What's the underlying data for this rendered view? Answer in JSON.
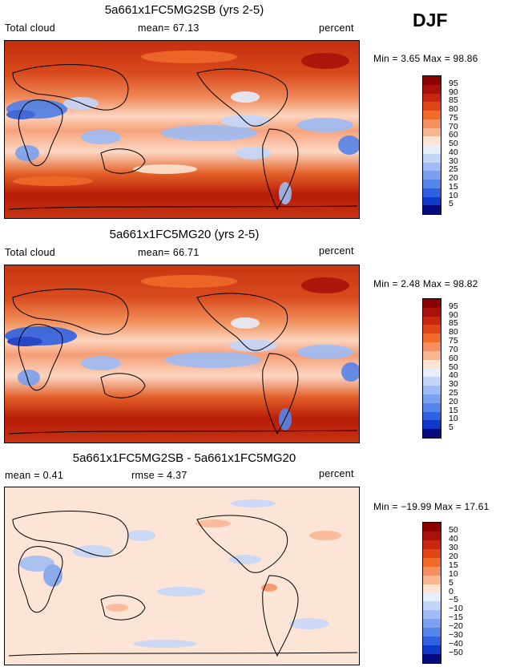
{
  "season": "DJF",
  "panels": [
    {
      "title": "5a661x1FC5MG2SB (yrs 2-5)",
      "left_label": "Total cloud",
      "center_label": "mean=  67.13",
      "right_label": "percent",
      "min_max": "Min =    3.65 Max =  98.86",
      "colorbar": {
        "labels": [
          "95",
          "90",
          "85",
          "80",
          "75",
          "70",
          "60",
          "50",
          "40",
          "30",
          "25",
          "20",
          "15",
          "10",
          "5"
        ],
        "colors": [
          "#8b0000",
          "#a8120a",
          "#c8260e",
          "#e04516",
          "#f06a2a",
          "#f79060",
          "#fab592",
          "#fde3d2",
          "#e6eefc",
          "#c3d6fa",
          "#9ebcf5",
          "#7aa0ef",
          "#5584ea",
          "#2f61e0",
          "#1238c8",
          "#0a0a80"
        ]
      }
    },
    {
      "title": "5a661x1FC5MG20 (yrs 2-5)",
      "left_label": "Total cloud",
      "center_label": "mean=  66.71",
      "right_label": "percent",
      "min_max": "Min =    2.48 Max =  98.82",
      "colorbar": {
        "labels": [
          "95",
          "90",
          "85",
          "80",
          "75",
          "70",
          "60",
          "50",
          "40",
          "30",
          "25",
          "20",
          "15",
          "10",
          "5"
        ],
        "colors": [
          "#8b0000",
          "#a8120a",
          "#c8260e",
          "#e04516",
          "#f06a2a",
          "#f79060",
          "#fab592",
          "#fde3d2",
          "#e6eefc",
          "#c3d6fa",
          "#9ebcf5",
          "#7aa0ef",
          "#5584ea",
          "#2f61e0",
          "#1238c8",
          "#0a0a80"
        ]
      }
    },
    {
      "title": "5a661x1FC5MG2SB - 5a661x1FC5MG20",
      "left_label": "mean =    0.41",
      "center_label": "rmse =    4.37",
      "right_label": "percent",
      "min_max": "Min = −19.99 Max =  17.61",
      "colorbar": {
        "labels": [
          "50",
          "40",
          "30",
          "20",
          "15",
          "10",
          "5",
          "0",
          "−5",
          "−10",
          "−15",
          "−20",
          "−30",
          "−40",
          "−50"
        ],
        "colors": [
          "#8b0000",
          "#a8120a",
          "#c8260e",
          "#e04516",
          "#f06a2a",
          "#f79060",
          "#fab592",
          "#fde3d2",
          "#e6eefc",
          "#c3d6fa",
          "#9ebcf5",
          "#7aa0ef",
          "#5584ea",
          "#2f61e0",
          "#1238c8",
          "#0a0a80"
        ]
      }
    }
  ],
  "chart_data": [
    {
      "type": "heatmap",
      "title": "5a661x1FC5MG2SB (yrs 2-5)",
      "variable": "Total cloud",
      "units": "percent",
      "mean": 67.13,
      "min": 3.65,
      "max": 98.86,
      "color_levels": [
        5,
        10,
        15,
        20,
        25,
        30,
        40,
        50,
        60,
        70,
        75,
        80,
        85,
        90,
        95
      ]
    },
    {
      "type": "heatmap",
      "title": "5a661x1FC5MG20 (yrs 2-5)",
      "variable": "Total cloud",
      "units": "percent",
      "mean": 66.71,
      "min": 2.48,
      "max": 98.82,
      "color_levels": [
        5,
        10,
        15,
        20,
        25,
        30,
        40,
        50,
        60,
        70,
        75,
        80,
        85,
        90,
        95
      ]
    },
    {
      "type": "heatmap",
      "title": "5a661x1FC5MG2SB - 5a661x1FC5MG20",
      "units": "percent",
      "mean": 0.41,
      "rmse": 4.37,
      "min": -19.99,
      "max": 17.61,
      "color_levels": [
        -50,
        -40,
        -30,
        -20,
        -15,
        -10,
        -5,
        0,
        5,
        10,
        15,
        20,
        30,
        40,
        50
      ]
    }
  ]
}
